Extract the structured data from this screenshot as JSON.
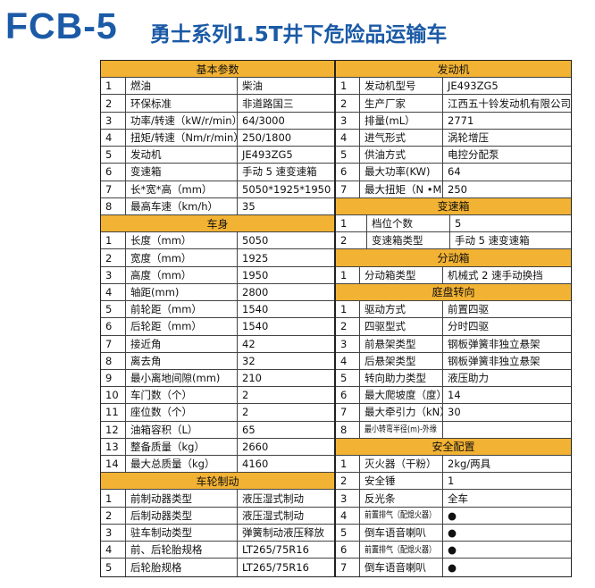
{
  "header": {
    "model": "FCB-5",
    "subtitle": "勇士系列1.5T井下危险品运输车"
  },
  "colors": {
    "title": "#1b5aa6",
    "section_header": "#f2b233"
  },
  "left": [
    {
      "title": "基本参数",
      "rows": [
        [
          "1",
          "燃油",
          "柴油"
        ],
        [
          "2",
          "环保标准",
          "非道路国三"
        ],
        [
          "3",
          "功率/转速（kW/r/min）",
          "64/3000"
        ],
        [
          "4",
          "扭矩/转速（Nm/r/min）",
          "250/1800"
        ],
        [
          "5",
          "发动机",
          "JE493ZG5"
        ],
        [
          "6",
          "变速箱",
          "手动 5 速变速箱"
        ],
        [
          "7",
          "长*宽*高（mm）",
          "5050*1925*1950"
        ],
        [
          "8",
          "最高车速（km/h）",
          "35"
        ]
      ]
    },
    {
      "title": "车身",
      "rows": [
        [
          "1",
          "长度（mm）",
          "5050"
        ],
        [
          "2",
          "宽度（mm）",
          "1925"
        ],
        [
          "3",
          "高度（mm）",
          "1950"
        ],
        [
          "4",
          "轴距(mm)",
          "2800"
        ],
        [
          "5",
          "前轮距（mm）",
          "1540"
        ],
        [
          "6",
          "后轮距（mm）",
          "1540"
        ],
        [
          "7",
          "接近角",
          "42"
        ],
        [
          "8",
          "离去角",
          "32"
        ],
        [
          "9",
          "最小离地间隙(mm)",
          "210"
        ],
        [
          "10",
          "车门数（个）",
          "2"
        ],
        [
          "11",
          "座位数（个）",
          "2"
        ],
        [
          "12",
          "油箱容积（L）",
          "65"
        ],
        [
          "13",
          "整备质量（kg）",
          "2660"
        ],
        [
          "14",
          "最大总质量（kg）",
          "4160"
        ]
      ]
    },
    {
      "title": "车轮制动",
      "rows": [
        [
          "1",
          "前制动器类型",
          "液压湿式制动"
        ],
        [
          "2",
          "后制动器类型",
          "液压湿式制动"
        ],
        [
          "3",
          "驻车制动类型",
          "弹簧制动液压释放"
        ],
        [
          "4",
          "前、后轮胎规格",
          "LT265/75R16"
        ],
        [
          "5",
          "后轮胎规格",
          "LT265/75R16"
        ]
      ]
    }
  ],
  "right": [
    {
      "title": "发动机",
      "rows": [
        [
          "1",
          "发动机型号",
          "JE493ZG5"
        ],
        [
          "2",
          "生产厂家",
          "江西五十铃发动机有限公司"
        ],
        [
          "3",
          "排量(mL）",
          "2771"
        ],
        [
          "4",
          "进气形式",
          "涡轮增压"
        ],
        [
          "5",
          "供油方式",
          "电控分配泵"
        ],
        [
          "6",
          "最大功率(KW)",
          "64"
        ],
        [
          "7",
          "最大扭矩（N •M）",
          "250"
        ]
      ]
    },
    {
      "title": "变速箱",
      "rows": [
        [
          "1",
          "档位个数",
          "5"
        ],
        [
          "2",
          "变速箱类型",
          "手动 5 速变速箱"
        ]
      ]
    },
    {
      "title": "分动箱",
      "rows": [
        [
          "1",
          "分动箱类型",
          "机械式 2 速手动换挡"
        ]
      ]
    },
    {
      "title": "庭盘转向",
      "rows": [
        [
          "1",
          "驱动方式",
          "前置四驱"
        ],
        [
          "2",
          "四驱型式",
          "分时四驱"
        ],
        [
          "3",
          "前悬架类型",
          "钢板弹簧非独立悬架"
        ],
        [
          "4",
          "后悬架类型",
          "钢板弹簧非独立悬架"
        ],
        [
          "5",
          "转向助力类型",
          "液压助力"
        ],
        [
          "6",
          "最大爬坡度（度）",
          "14"
        ],
        [
          "7",
          "最大牵引力（kN）",
          "30"
        ],
        [
          "8",
          "最小转弯半径(m)-外缘",
          ""
        ]
      ]
    },
    {
      "title": "安全配置",
      "rows": [
        [
          "1",
          "灭火器（干粉）",
          "2kg/两具"
        ],
        [
          "2",
          "安全锤",
          "1"
        ],
        [
          "3",
          "反光条",
          "全车"
        ],
        [
          "4",
          "前置排气（配熄火器）",
          "●"
        ],
        [
          "5",
          "倒车语音喇叭",
          "●"
        ],
        [
          "6",
          "前置排气（配熄火器）",
          "●"
        ],
        [
          "7",
          "倒车语音喇叭",
          "●"
        ]
      ]
    }
  ]
}
